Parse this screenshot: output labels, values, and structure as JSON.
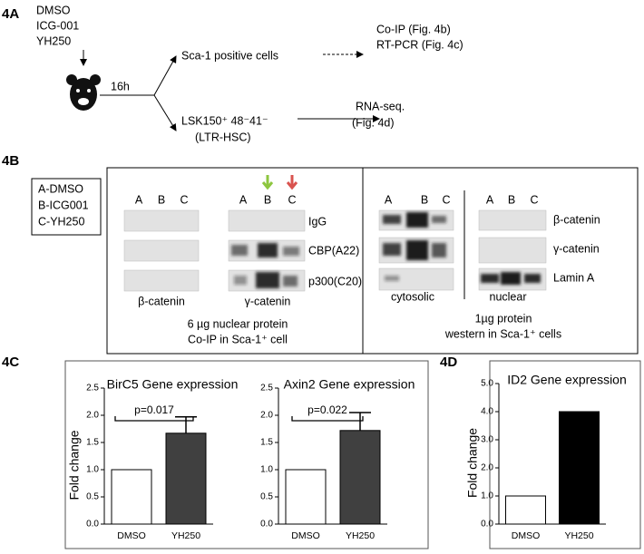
{
  "panel_4a": {
    "label": "4A",
    "treatments": [
      "DMSO",
      "ICG-001",
      "YH250"
    ],
    "time": "16h",
    "branches": [
      {
        "cells": "Sca-1 positive cells",
        "assays": [
          "Co-IP (Fig. 4b)",
          "RT-PCR (Fig. 4c)"
        ]
      },
      {
        "cells": "LSK150⁺ 48⁻41⁻",
        "cells_note": "(LTR-HSC)",
        "assays": [
          "RNA-seq.",
          "(Fig. 4d)"
        ]
      }
    ]
  },
  "panel_4b": {
    "label": "4B",
    "legend": [
      "A-DMSO",
      "B-ICG001",
      "C-YH250"
    ],
    "coip": {
      "lanes": [
        "A",
        "B",
        "C"
      ],
      "antibodies": [
        "IgG",
        "CBP(A22)",
        "p300(C20)"
      ],
      "groups": [
        "β-catenin",
        "γ-catenin"
      ],
      "caption": [
        "6 µg nuclear protein",
        "Co-IP in Sca-1⁺ cell"
      ]
    },
    "western": {
      "lanes": [
        "A",
        "B",
        "C"
      ],
      "proteins": [
        "β-catenin",
        "γ-catenin",
        "Lamin A"
      ],
      "fractions": [
        "cytosolic",
        "nuclear"
      ],
      "caption": [
        "1µg protein",
        "western in Sca-1⁺ cells"
      ]
    }
  },
  "panel_4c_label": "4C",
  "panel_4d_label": "4D",
  "chart_data": [
    {
      "type": "bar",
      "title": "BirC5 Gene expression",
      "y_label": "Fold change",
      "categories": [
        "DMSO",
        "YH250"
      ],
      "values": [
        1.0,
        1.67
      ],
      "errors": [
        null,
        0.3
      ],
      "colors": [
        "#ffffff",
        "#404040"
      ],
      "annotation": "p=0.017",
      "ylim": [
        0,
        2.5
      ],
      "yticks": [
        {
          "value": 0,
          "label": "0.0"
        },
        {
          "value": 0.5,
          "label": "0.5"
        },
        {
          "value": 1,
          "label": "1.0"
        },
        {
          "value": 1.5,
          "label": "1.5"
        },
        {
          "value": 2,
          "label": "2.0"
        },
        {
          "value": 2.5,
          "label": "2.5"
        }
      ]
    },
    {
      "type": "bar",
      "title": "Axin2 Gene expression",
      "categories": [
        "DMSO",
        "YH250"
      ],
      "values": [
        1.0,
        1.72
      ],
      "errors": [
        null,
        0.33
      ],
      "colors": [
        "#ffffff",
        "#404040"
      ],
      "annotation": "p=0.022",
      "ylim": [
        0,
        2.5
      ],
      "yticks": [
        {
          "value": 0,
          "label": "0.0"
        },
        {
          "value": 0.5,
          "label": "0.5"
        },
        {
          "value": 1,
          "label": "1.0"
        },
        {
          "value": 1.5,
          "label": "1.5"
        },
        {
          "value": 2,
          "label": "2.0"
        },
        {
          "value": 2.5,
          "label": "2.5"
        }
      ]
    },
    {
      "type": "bar",
      "title": "ID2 Gene expression",
      "y_label": "Fold change",
      "categories": [
        "DMSO",
        "YH250"
      ],
      "values": [
        1.0,
        4.0
      ],
      "colors": [
        "#ffffff",
        "#000000"
      ],
      "ylim": [
        0,
        5
      ],
      "yticks": [
        {
          "value": 0,
          "label": "0.0"
        },
        {
          "value": 1,
          "label": "1.0"
        },
        {
          "value": 2,
          "label": "2.0"
        },
        {
          "value": 3,
          "label": "3.0"
        },
        {
          "value": 4,
          "label": "4.0"
        },
        {
          "value": 5,
          "label": "5.0"
        }
      ]
    }
  ]
}
